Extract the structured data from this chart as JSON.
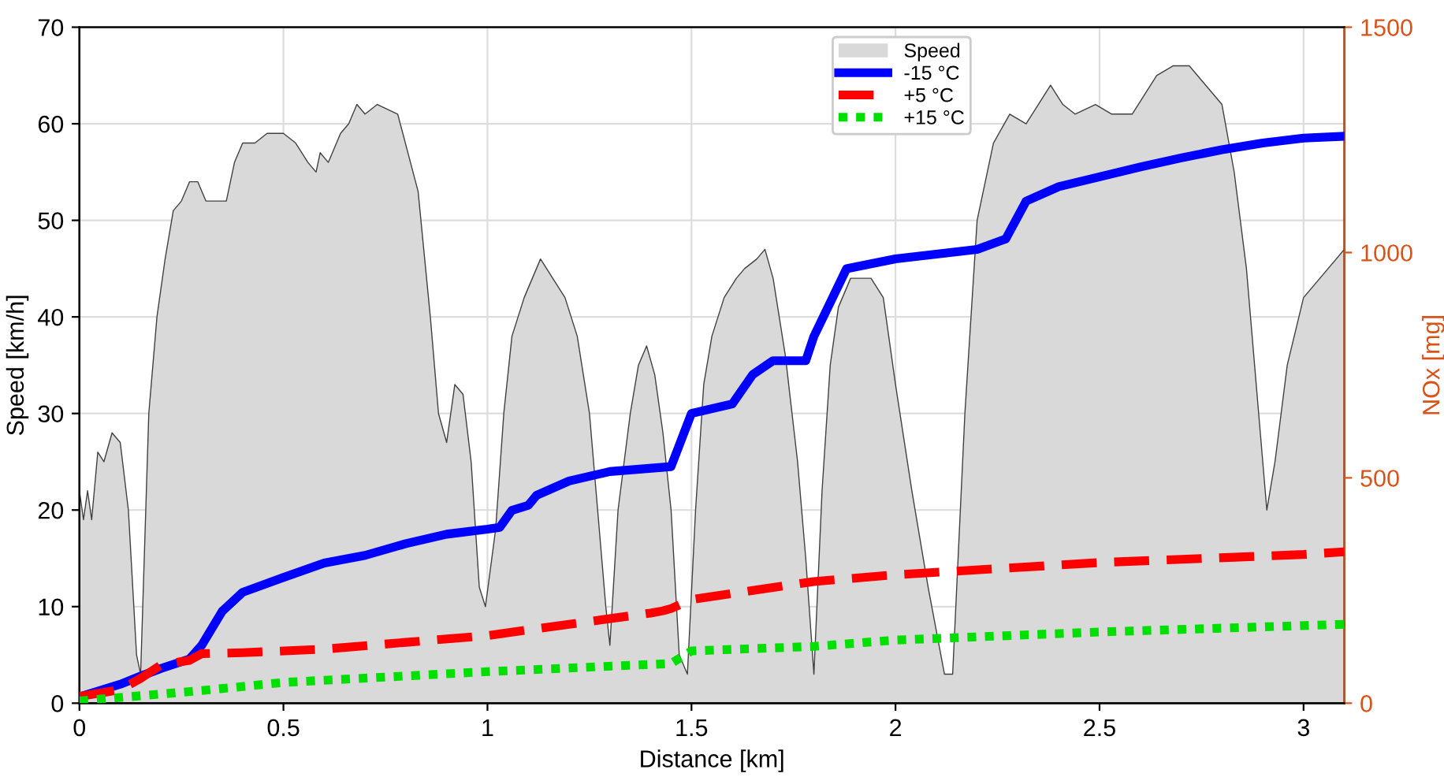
{
  "chart_data": {
    "type": "line",
    "xlabel": "Distance [km]",
    "ylabel": "Speed [km/h]",
    "y2label": "NOx [mg]",
    "xlim": [
      0,
      3.1
    ],
    "xticks": [
      0,
      0.5,
      1,
      1.5,
      2,
      2.5,
      3
    ],
    "ylim": [
      0,
      70
    ],
    "yticks": [
      0,
      10,
      20,
      30,
      40,
      50,
      60,
      70
    ],
    "y2lim": [
      0,
      1500
    ],
    "y2ticks": [
      0,
      500,
      1000,
      1500
    ],
    "grid": true,
    "legend": "top",
    "series": [
      {
        "name": "Speed",
        "type": "area",
        "axis": "y",
        "color": "#d9d9d9",
        "x": [
          0,
          0.01,
          0.02,
          0.03,
          0.045,
          0.06,
          0.08,
          0.1,
          0.12,
          0.14,
          0.15,
          0.17,
          0.19,
          0.21,
          0.23,
          0.25,
          0.27,
          0.29,
          0.31,
          0.36,
          0.38,
          0.4,
          0.43,
          0.46,
          0.5,
          0.53,
          0.56,
          0.58,
          0.59,
          0.61,
          0.64,
          0.66,
          0.68,
          0.7,
          0.73,
          0.78,
          0.83,
          0.86,
          0.88,
          0.9,
          0.92,
          0.94,
          0.96,
          0.98,
          0.995,
          1.02,
          1.04,
          1.06,
          1.09,
          1.11,
          1.13,
          1.16,
          1.19,
          1.22,
          1.25,
          1.27,
          1.29,
          1.3,
          1.32,
          1.35,
          1.37,
          1.39,
          1.41,
          1.43,
          1.45,
          1.47,
          1.49,
          1.51,
          1.53,
          1.55,
          1.58,
          1.61,
          1.63,
          1.66,
          1.68,
          1.7,
          1.73,
          1.76,
          1.78,
          1.8,
          1.82,
          1.84,
          1.86,
          1.89,
          1.94,
          1.97,
          2.0,
          2.04,
          2.08,
          2.12,
          2.14,
          2.17,
          2.2,
          2.24,
          2.28,
          2.32,
          2.35,
          2.38,
          2.41,
          2.44,
          2.49,
          2.53,
          2.58,
          2.61,
          2.64,
          2.68,
          2.72,
          2.76,
          2.8,
          2.83,
          2.86,
          2.89,
          2.91,
          2.93,
          2.96,
          3.0,
          3.1
        ],
        "values": [
          22,
          19,
          22,
          19,
          26,
          25,
          28,
          27,
          20,
          5,
          3,
          30,
          40,
          46,
          51,
          52,
          54,
          54,
          52,
          52,
          56,
          58,
          58,
          59,
          59,
          58,
          56,
          55,
          57,
          56,
          59,
          60,
          62,
          61,
          62,
          61,
          53,
          40,
          30,
          27,
          33,
          32,
          25,
          12,
          10,
          18,
          30,
          38,
          42,
          44,
          46,
          44,
          42,
          38,
          30,
          20,
          10,
          6,
          20,
          30,
          35,
          37,
          34,
          28,
          20,
          5,
          3,
          20,
          33,
          38,
          42,
          44,
          45,
          46,
          47,
          44,
          36,
          25,
          15,
          3,
          22,
          35,
          41,
          44,
          44,
          42,
          33,
          22,
          12,
          3,
          3,
          30,
          50,
          58,
          61,
          60,
          62,
          64,
          62,
          61,
          62,
          61,
          61,
          63,
          65,
          66,
          66,
          64,
          62,
          55,
          45,
          30,
          20,
          25,
          35,
          42,
          47
        ]
      },
      {
        "name": "-15 °C",
        "axis": "y2",
        "color": "#0000ff",
        "line_style": "solid",
        "x": [
          0,
          0.1,
          0.15,
          0.2,
          0.27,
          0.3,
          0.35,
          0.4,
          0.5,
          0.6,
          0.7,
          0.8,
          0.9,
          1.0,
          1.03,
          1.06,
          1.1,
          1.12,
          1.2,
          1.3,
          1.45,
          1.5,
          1.6,
          1.65,
          1.7,
          1.78,
          1.8,
          1.88,
          2.0,
          2.2,
          2.27,
          2.32,
          2.4,
          2.5,
          2.6,
          2.7,
          2.8,
          2.9,
          3.0,
          3.1
        ],
        "values": [
          14,
          42,
          60,
          77,
          98,
          129,
          204,
          246,
          279,
          311,
          328,
          354,
          375,
          386,
          390,
          428,
          439,
          461,
          493,
          514,
          525,
          643,
          664,
          729,
          760,
          760,
          814,
          964,
          986,
          1007,
          1030,
          1114,
          1146,
          1168,
          1190,
          1210,
          1228,
          1243,
          1254,
          1258
        ]
      },
      {
        "name": "+5 °C",
        "axis": "y2",
        "color": "#ff0000",
        "line_style": "dashed",
        "x": [
          0,
          0.1,
          0.15,
          0.2,
          0.27,
          0.3,
          0.4,
          0.6,
          0.8,
          1.0,
          1.2,
          1.4,
          1.43,
          1.45,
          1.5,
          1.8,
          2.0,
          2.5,
          3.0,
          3.1
        ],
        "values": [
          15,
          30,
          55,
          85,
          95,
          110,
          112,
          120,
          135,
          150,
          175,
          200,
          205,
          210,
          230,
          270,
          285,
          312,
          330,
          336
        ]
      },
      {
        "name": "+15 °C",
        "axis": "y2",
        "color": "#00e000",
        "line_style": "dotted",
        "x": [
          0,
          0.3,
          0.5,
          1.0,
          1.45,
          1.5,
          1.8,
          2.0,
          2.5,
          3.1
        ],
        "values": [
          5,
          28,
          46,
          70,
          88,
          116,
          126,
          140,
          158,
          175
        ]
      }
    ]
  }
}
